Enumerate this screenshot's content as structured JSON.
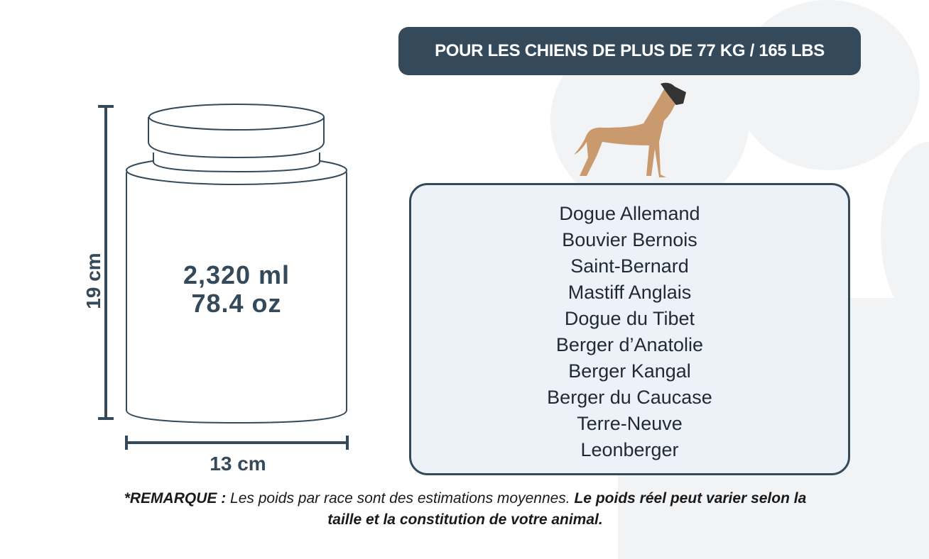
{
  "banner": "POUR LES CHIENS DE PLUS DE 77 KG / 165 LBS",
  "jar": {
    "volume_ml": "2,320 ml",
    "volume_oz": "78.4 oz",
    "height": "19 cm",
    "width": "13 cm"
  },
  "breeds": [
    "Dogue Allemand",
    "Bouvier Bernois",
    "Saint-Bernard",
    "Mastiff Anglais",
    "Dogue du Tibet",
    "Berger d’Anatolie",
    "Berger Kangal",
    "Berger du Caucase",
    "Terre-Neuve",
    "Leonberger"
  ],
  "note": {
    "label": "*REMARQUE :",
    "text": " Les poids par race sont des estimations moyennes. ",
    "bold": "Le poids réel peut varier selon la taille et la constitution de votre animal."
  },
  "colors": {
    "primary": "#34495a",
    "box_bg": "#edf2f8",
    "dog": "#c99a6e"
  }
}
